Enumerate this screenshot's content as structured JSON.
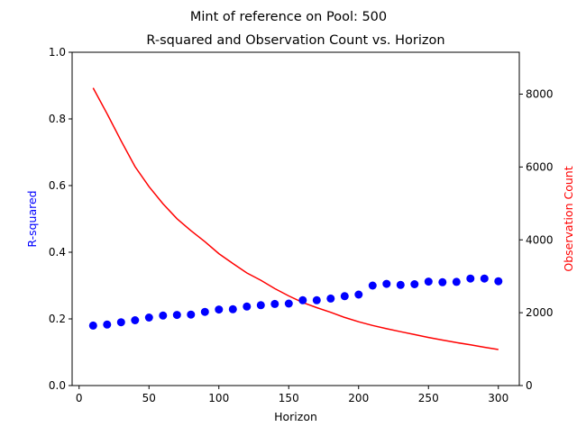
{
  "chart_data": {
    "type": "scatter+line",
    "suptitle": "Mint of reference on Pool: 500",
    "title": "R-squared and Observation Count vs. Horizon",
    "xlabel": "Horizon",
    "ylabel_left": "R-squared",
    "ylabel_right": "Observation Count",
    "xlim": [
      -5,
      315
    ],
    "ylim_left": [
      0.0,
      1.0
    ],
    "ylim_right": [
      0,
      9150
    ],
    "xticks": [
      0,
      50,
      100,
      150,
      200,
      250,
      300
    ],
    "yticks_left": [
      0.0,
      0.2,
      0.4,
      0.6,
      0.8,
      1.0
    ],
    "yticks_right": [
      0,
      2000,
      4000,
      6000,
      8000
    ],
    "grid": false,
    "legend": "none",
    "x": [
      10,
      20,
      30,
      40,
      50,
      60,
      70,
      80,
      90,
      100,
      110,
      120,
      130,
      140,
      150,
      160,
      170,
      180,
      190,
      200,
      210,
      220,
      230,
      240,
      250,
      260,
      270,
      280,
      290,
      300
    ],
    "series": [
      {
        "kind": "scatter",
        "axis": "left",
        "color": "#0000ff",
        "values": [
          0.18,
          0.183,
          0.19,
          0.196,
          0.204,
          0.21,
          0.212,
          0.213,
          0.221,
          0.228,
          0.229,
          0.237,
          0.241,
          0.245,
          0.246,
          0.256,
          0.256,
          0.261,
          0.268,
          0.273,
          0.3,
          0.305,
          0.302,
          0.304,
          0.312,
          0.31,
          0.311,
          0.321,
          0.321,
          0.313
        ]
      },
      {
        "kind": "line",
        "axis": "right",
        "color": "#ff0000",
        "values": [
          8170,
          7460,
          6720,
          6010,
          5460,
          4990,
          4580,
          4250,
          3950,
          3620,
          3350,
          3090,
          2890,
          2660,
          2460,
          2280,
          2140,
          2010,
          1870,
          1750,
          1650,
          1560,
          1480,
          1400,
          1320,
          1250,
          1180,
          1120,
          1050,
          990
        ]
      }
    ]
  }
}
